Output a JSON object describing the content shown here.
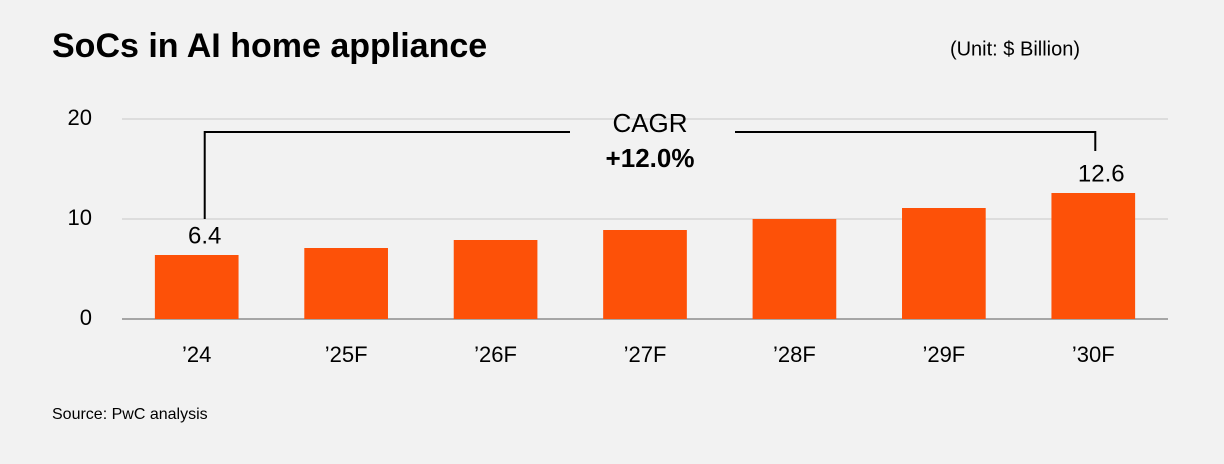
{
  "chart_data": {
    "type": "bar",
    "title": "SoCs in AI home appliance",
    "subtitle": "(Unit: $ Billion)",
    "categories": [
      "’24",
      "’25F",
      "’26F",
      "’27F",
      "’28F",
      "’29F",
      "’30F"
    ],
    "values": [
      6.4,
      7.1,
      7.9,
      8.9,
      10.0,
      11.1,
      12.6
    ],
    "value_labels": [
      "6.4",
      null,
      null,
      null,
      null,
      null,
      "12.6"
    ],
    "color": "#fd5108",
    "ylim": [
      0,
      20
    ],
    "yticks": [
      0,
      10,
      20
    ],
    "grid": true,
    "annotations": [
      "CAGR",
      "+12.0%"
    ],
    "source": "Source: PwC analysis"
  }
}
